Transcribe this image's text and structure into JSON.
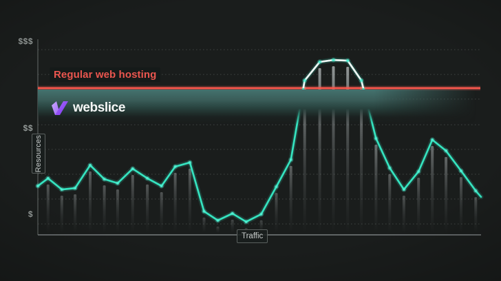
{
  "brand": {
    "name": "webslice",
    "logo_icon": "webslice-w-icon",
    "purple_light": "#c9a8fd",
    "purple_mid": "#9e68f7",
    "purple_deep": "#7e35f2"
  },
  "chart_data": {
    "type": "line",
    "title": "",
    "xlabel": "Traffic",
    "ylabel": "Resources",
    "ylim": [
      0,
      100
    ],
    "grid": "dotted-horizontal",
    "legend": "none",
    "y_tick_labels": [
      {
        "label": "$$$",
        "value": 98.6
      },
      {
        "label": "$$",
        "value": 54.2
      },
      {
        "label": "$",
        "value": 10.2
      }
    ],
    "gridline_values": [
      94.7,
      82.0,
      69.4,
      56.3,
      43.7,
      31.0,
      18.3,
      5.6
    ],
    "threshold": {
      "label": "Regular web hosting",
      "value": 75,
      "line_color": "#f4574d",
      "label_color": "#ea564f"
    },
    "series": [
      {
        "name": "resources-used-vs-traffic",
        "color": "#35e3bf",
        "above_threshold_color": "#eff3f2",
        "dot_color": "#4fefd0",
        "bar_color": "#c6cccd",
        "x_pct": [
          0,
          2.3,
          5.4,
          8.4,
          11.8,
          15.0,
          18.0,
          21.4,
          24.7,
          27.9,
          31.0,
          34.3,
          37.5,
          40.6,
          43.9,
          47.0,
          50.4,
          53.8,
          57.1,
          60.2,
          63.6,
          66.7,
          69.9,
          73.0,
          76.3,
          79.4,
          82.6,
          85.9,
          89.0,
          92.1,
          95.5,
          98.8
        ],
        "values": [
          25.0,
          28.9,
          23.2,
          23.9,
          35.6,
          28.5,
          26.4,
          33.8,
          28.9,
          25.0,
          34.9,
          37.0,
          12.0,
          7.4,
          10.9,
          6.7,
          10.6,
          24.6,
          38.4,
          78.9,
          88.4,
          89.4,
          89.1,
          78.9,
          49.3,
          34.2,
          23.2,
          32.4,
          48.6,
          43.0,
          32.7,
          22.5
        ]
      }
    ],
    "line_tail": {
      "x_pct": 100,
      "value": 19.4
    }
  }
}
